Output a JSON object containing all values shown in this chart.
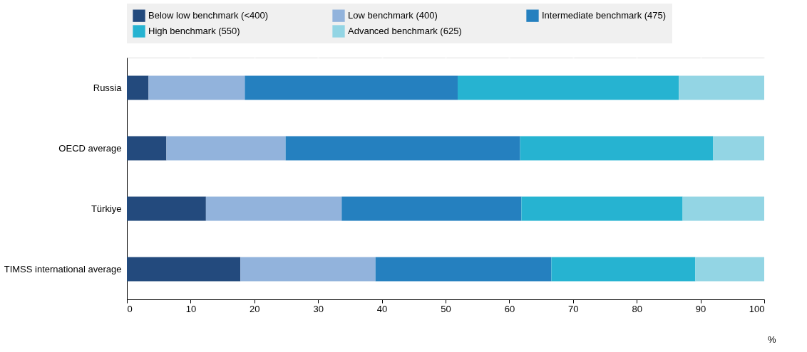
{
  "chart_data": {
    "type": "bar",
    "orientation": "horizontal",
    "stacked": true,
    "categories": [
      "Russia",
      "OECD average",
      "Türkiye",
      "TIMSS international average"
    ],
    "series": [
      {
        "name": "Below low benchmark (<400)",
        "color": "#234a7d",
        "values": [
          3.4,
          6.2,
          12.4,
          17.8
        ]
      },
      {
        "name": "Low benchmark (400)",
        "color": "#92b3dc",
        "values": [
          15.1,
          18.7,
          21.3,
          21.2
        ]
      },
      {
        "name": "Intermediate benchmark (475)",
        "color": "#2580bf",
        "values": [
          33.4,
          36.8,
          28.2,
          27.6
        ]
      },
      {
        "name": "High benchmark (550)",
        "color": "#26b3d1",
        "values": [
          34.7,
          30.3,
          25.3,
          22.6
        ]
      },
      {
        "name": "Advanced benchmark (625)",
        "color": "#93d5e4",
        "values": [
          13.4,
          8.0,
          12.8,
          10.8
        ]
      }
    ],
    "xlabel": "%",
    "xlim": [
      0,
      100
    ],
    "xticks": [
      0,
      10,
      20,
      30,
      40,
      50,
      60,
      70,
      80,
      90,
      100
    ],
    "grid": "x",
    "legend": "top"
  }
}
